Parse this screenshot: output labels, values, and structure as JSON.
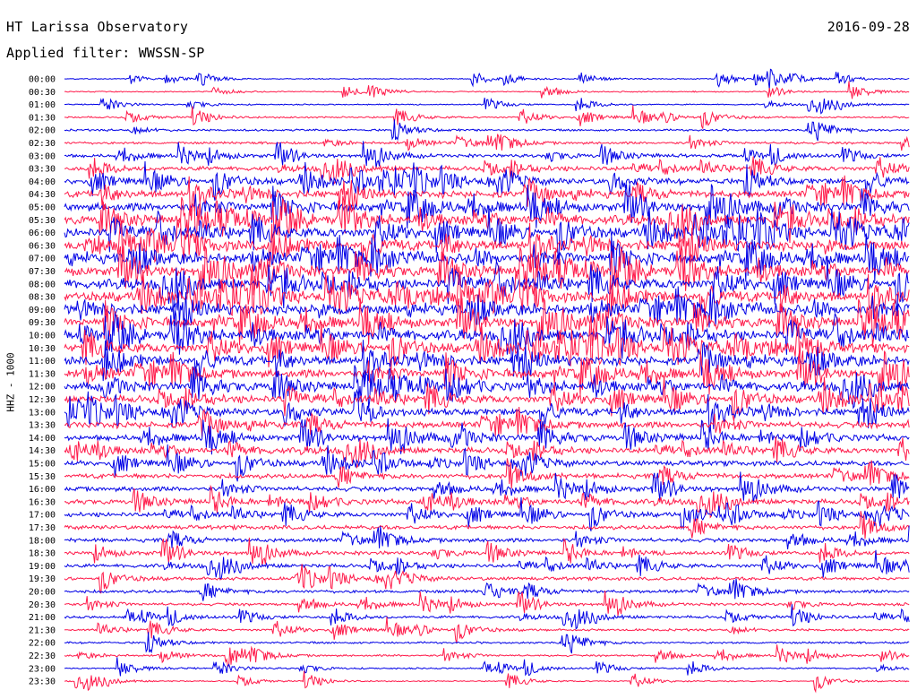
{
  "header": {
    "title": "HT Larissa Observatory",
    "date": "2016-09-28",
    "filter": "Applied filter: WWSSN-SP"
  },
  "chart_data": {
    "type": "line",
    "title": "HT Larissa Observatory",
    "ylabel": "HHZ - 1000",
    "date": "2016-09-28",
    "filter": "WWSSN-SP",
    "colors": {
      "even": "#0000e6",
      "odd": "#ff1a4a"
    },
    "grid": false,
    "rows": [
      "00:00",
      "00:30",
      "01:00",
      "01:30",
      "02:00",
      "02:30",
      "03:00",
      "03:30",
      "04:00",
      "04:30",
      "05:00",
      "05:30",
      "06:00",
      "06:30",
      "07:00",
      "07:30",
      "08:00",
      "08:30",
      "09:00",
      "09:30",
      "10:00",
      "10:30",
      "11:00",
      "11:30",
      "12:00",
      "12:30",
      "13:00",
      "13:30",
      "14:00",
      "14:30",
      "15:00",
      "15:30",
      "16:00",
      "16:30",
      "17:00",
      "17:30",
      "18:00",
      "18:30",
      "19:00",
      "19:30",
      "20:00",
      "20:30",
      "21:00",
      "21:30",
      "22:00",
      "22:30",
      "23:00",
      "23:30"
    ],
    "noise_level": [
      0.5,
      0.6,
      0.6,
      0.9,
      1.1,
      1.3,
      1.8,
      2.3,
      3.0,
      3.5,
      4.4,
      4.6,
      4.8,
      5.0,
      5.0,
      5.0,
      5.0,
      5.0,
      4.9,
      4.8,
      4.8,
      4.6,
      4.5,
      4.4,
      4.2,
      3.8,
      3.5,
      3.3,
      3.1,
      2.9,
      2.7,
      2.6,
      2.5,
      2.5,
      2.3,
      2.2,
      2.1,
      2.0,
      1.9,
      1.8,
      1.7,
      1.5,
      1.4,
      1.2,
      1.1,
      1.0,
      0.8,
      0.6
    ]
  }
}
